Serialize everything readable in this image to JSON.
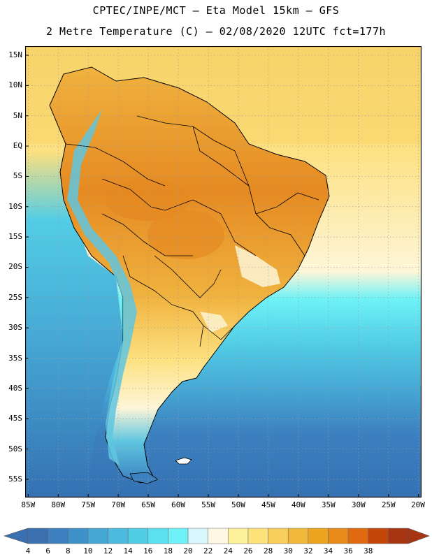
{
  "title": {
    "line1": "CPTEC/INPE/MCT –  Eta Model 15km – GFS",
    "line2": "2 Metre Temperature (C) – 02/08/2020 12UTC fct=177h"
  },
  "axes": {
    "lat_labels": [
      "15N",
      "10N",
      "5N",
      "EQ",
      "5S",
      "10S",
      "15S",
      "20S",
      "25S",
      "30S",
      "35S",
      "40S",
      "45S",
      "50S",
      "55S"
    ],
    "lat_values": [
      15,
      10,
      5,
      0,
      -5,
      -10,
      -15,
      -20,
      -25,
      -30,
      -35,
      -40,
      -45,
      -50,
      -55
    ],
    "lon_labels": [
      "85W",
      "80W",
      "75W",
      "70W",
      "65W",
      "60W",
      "55W",
      "50W",
      "45W",
      "40W",
      "35W",
      "30W",
      "25W",
      "20W"
    ],
    "lon_values": [
      -85,
      -80,
      -75,
      -70,
      -65,
      -60,
      -55,
      -50,
      -45,
      -40,
      -35,
      -30,
      -25,
      -20
    ],
    "lat_range": [
      -58,
      16.5
    ],
    "lon_range": [
      -85.5,
      -19.5
    ]
  },
  "colorbar": {
    "labels": [
      "4",
      "6",
      "8",
      "10",
      "12",
      "14",
      "16",
      "18",
      "20",
      "22",
      "24",
      "26",
      "28",
      "30",
      "32",
      "34",
      "36",
      "38"
    ],
    "colors": [
      "#3a6fb0",
      "#3c80bf",
      "#3f92c9",
      "#46a7d4",
      "#4dbbdd",
      "#52cde6",
      "#5ae0ee",
      "#6ef2f7",
      "#d8f6fb",
      "#fdf7e4",
      "#fdf19a",
      "#fde27a",
      "#f8cf5c",
      "#f0b93c",
      "#eea31f",
      "#e88a1c",
      "#e06a10",
      "#c44609",
      "#a73512"
    ],
    "left_arrow_color": "#3a6fb0",
    "right_arrow_color": "#a73512"
  },
  "map_colors": {
    "ocean_warm": "#f7d36a",
    "ocean_mid": "#fde07f",
    "ocean_cool": "#5ddcea",
    "ocean_cold": "#4ba9d6",
    "ocean_coldest": "#3471b3",
    "land_hot": "#e58a22",
    "land_warm": "#f0b23e",
    "andes": "#5fc6e0",
    "coast_pale": "#fdf6d8",
    "border": "#000000",
    "grid": "#9b9b9b"
  }
}
